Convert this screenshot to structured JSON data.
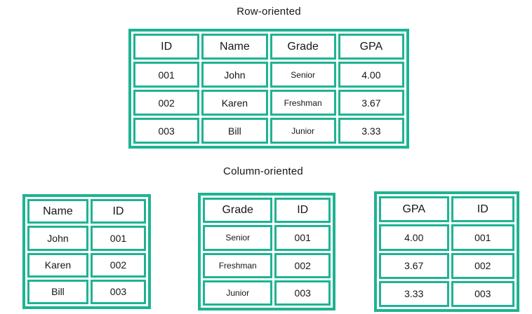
{
  "colors": {
    "table_border": "#1fb392",
    "text": "#161616",
    "cell_background": "#ffffff"
  },
  "row_oriented": {
    "title": "Row-oriented",
    "headers": [
      "ID",
      "Name",
      "Grade",
      "GPA"
    ],
    "rows": [
      [
        "001",
        "John",
        "Senior",
        "4.00"
      ],
      [
        "002",
        "Karen",
        "Freshman",
        "3.67"
      ],
      [
        "003",
        "Bill",
        "Junior",
        "3.33"
      ]
    ]
  },
  "column_oriented": {
    "title": "Column-oriented",
    "tables": [
      {
        "headers": [
          "Name",
          "ID"
        ],
        "rows": [
          [
            "John",
            "001"
          ],
          [
            "Karen",
            "002"
          ],
          [
            "Bill",
            "003"
          ]
        ]
      },
      {
        "headers": [
          "Grade",
          "ID"
        ],
        "rows": [
          [
            "Senior",
            "001"
          ],
          [
            "Freshman",
            "002"
          ],
          [
            "Junior",
            "003"
          ]
        ]
      },
      {
        "headers": [
          "GPA",
          "ID"
        ],
        "rows": [
          [
            "4.00",
            "001"
          ],
          [
            "3.67",
            "002"
          ],
          [
            "3.33",
            "003"
          ]
        ]
      }
    ]
  }
}
